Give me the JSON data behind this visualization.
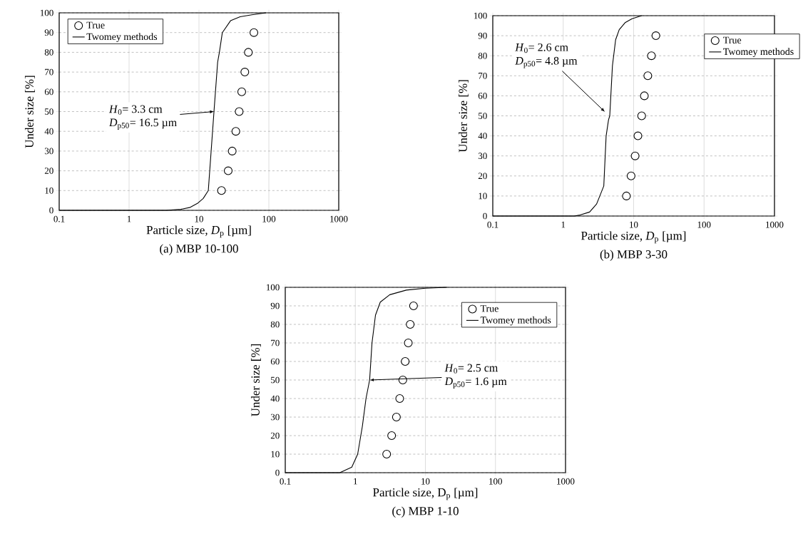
{
  "chart_data": [
    {
      "type": "scatter",
      "title": "(a) MBP 10-100",
      "xlabel": "Particle size, *D*$_{p}$ [µm]",
      "ylabel": "Under size [%]",
      "xlim": [
        0.1,
        1000
      ],
      "ylim": [
        0,
        100
      ],
      "xticks": [
        0.1,
        1,
        10,
        100,
        1000
      ],
      "yticks": [
        0,
        10,
        20,
        30,
        40,
        50,
        60,
        70,
        80,
        90,
        100
      ],
      "log": "x",
      "grid": true,
      "legend": "top left",
      "annotations": [
        "*H*$_{0}$= 3.3 cm",
        "*D*$_{p50}$= 16.5 µm"
      ],
      "series": [
        {
          "name": "True",
          "marker": "circle",
          "color": "#000000",
          "x": [
            21.0,
            26.2,
            29.9,
            33.7,
            37.6,
            40.9,
            45.3,
            50.9,
            61.1
          ],
          "values": [
            10,
            20,
            30,
            40,
            50,
            60,
            70,
            80,
            90
          ]
        },
        {
          "name": "Twomey methods",
          "type": "line",
          "marker": "none",
          "color": "#000000",
          "x": [
            0.1,
            3.4,
            5.5,
            7.5,
            9.5,
            11.5,
            13.6,
            16.4,
            18.5,
            19.6,
            21.6,
            28.3,
            38.8,
            57,
            91
          ],
          "values": [
            0,
            0,
            0.5,
            1.5,
            3.5,
            6,
            10,
            50,
            75,
            80,
            90,
            96,
            98,
            99,
            100
          ]
        }
      ]
    },
    {
      "type": "scatter",
      "title": "(b) MBP 3-30",
      "xlabel": "Particle size, *D*$_{p}$ [µm]",
      "ylabel": "Under size [%]",
      "xlim": [
        0.1,
        1000
      ],
      "ylim": [
        0,
        100
      ],
      "xticks": [
        0.1,
        1,
        10,
        100,
        1000
      ],
      "yticks": [
        0,
        10,
        20,
        30,
        40,
        50,
        60,
        70,
        80,
        90,
        100
      ],
      "log": "x",
      "grid": true,
      "legend": "right",
      "annotations": [
        "*H*$_{0}$= 2.6 cm",
        "*D*$_{p50}$= 4.8 µm"
      ],
      "series": [
        {
          "name": "True",
          "marker": "circle",
          "color": "#000000",
          "x": [
            7.9,
            9.2,
            10.5,
            11.5,
            13.0,
            14.2,
            15.9,
            17.9,
            20.7
          ],
          "values": [
            10,
            20,
            30,
            40,
            50,
            60,
            70,
            80,
            90
          ]
        },
        {
          "name": "Twomey methods",
          "type": "line",
          "marker": "none",
          "color": "#000000",
          "x": [
            0.1,
            1.43,
            1.74,
            2.37,
            2.98,
            3.77,
            4.07,
            4.4,
            4.58,
            5.0,
            5.55,
            6.24,
            7.56,
            9.5,
            13
          ],
          "values": [
            0,
            0,
            0.5,
            2,
            6,
            15,
            40,
            48,
            50,
            75,
            88,
            93,
            96.5,
            98.5,
            100
          ]
        }
      ]
    },
    {
      "type": "scatter",
      "title": "(c) MBP 1-10",
      "xlabel": "Particle size, D$_{p}$ [µm]",
      "ylabel": "Under size [%]",
      "xlim": [
        0.1,
        1000
      ],
      "ylim": [
        0,
        100
      ],
      "xticks": [
        0.1,
        1,
        10,
        100,
        1000
      ],
      "yticks": [
        0,
        10,
        20,
        30,
        40,
        50,
        60,
        70,
        80,
        90,
        100
      ],
      "log": "x",
      "grid": true,
      "legend": "top right",
      "annotations": [
        "*H*$_{0}$= 2.5 cm",
        "*D*$_{p50}$= 1.6 µm"
      ],
      "series": [
        {
          "name": "True",
          "marker": "circle",
          "color": "#000000",
          "x": [
            2.8,
            3.3,
            3.86,
            4.3,
            4.76,
            5.15,
            5.7,
            6.07,
            6.77
          ],
          "values": [
            10,
            20,
            30,
            40,
            50,
            60,
            70,
            80,
            90
          ]
        },
        {
          "name": "Twomey methods",
          "type": "line",
          "marker": "none",
          "color": "#000000",
          "x": [
            0.1,
            0.6,
            0.89,
            1.08,
            1.26,
            1.42,
            1.6,
            1.73,
            1.94,
            2.27,
            3.1,
            5.35,
            10,
            20.2
          ],
          "values": [
            0,
            0,
            3,
            10,
            25,
            40,
            50,
            70,
            85,
            92,
            96,
            98.5,
            99.5,
            100
          ]
        }
      ]
    }
  ]
}
